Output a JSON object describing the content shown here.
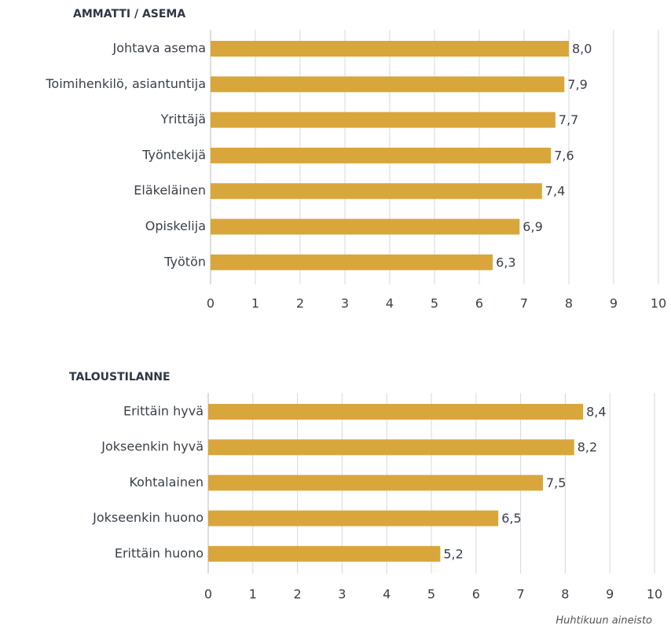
{
  "chart_data": [
    {
      "type": "bar",
      "orientation": "horizontal",
      "title": "AMMATTI / ASEMA",
      "categories": [
        "Johtava asema",
        "Toimihenkilö, asiantuntija",
        "Yrittäjä",
        "Työntekijä",
        "Eläkeläinen",
        "Opiskelija",
        "Työtön"
      ],
      "values": [
        8.0,
        7.9,
        7.7,
        7.6,
        7.4,
        6.9,
        6.3
      ],
      "value_labels": [
        "8,0",
        "7,9",
        "7,7",
        "7,6",
        "7,4",
        "6,9",
        "6,3"
      ],
      "color": "#d9a63b",
      "xlim": [
        0,
        10
      ],
      "xticks": [
        0,
        1,
        2,
        3,
        4,
        5,
        6,
        7,
        8,
        9,
        10
      ],
      "grid": true
    },
    {
      "type": "bar",
      "orientation": "horizontal",
      "title": "TALOUSTILANNE",
      "categories": [
        "Erittäin hyvä",
        "Jokseenkin hyvä",
        "Kohtalainen",
        "Jokseenkin huono",
        "Erittäin huono"
      ],
      "values": [
        8.4,
        8.2,
        7.5,
        6.5,
        5.2
      ],
      "value_labels": [
        "8,4",
        "8,2",
        "7,5",
        "6,5",
        "5,2"
      ],
      "color": "#d9a63b",
      "xlim": [
        0,
        10
      ],
      "xticks": [
        0,
        1,
        2,
        3,
        4,
        5,
        6,
        7,
        8,
        9,
        10
      ],
      "grid": true
    }
  ],
  "note": "Huhtikuun aineisto"
}
